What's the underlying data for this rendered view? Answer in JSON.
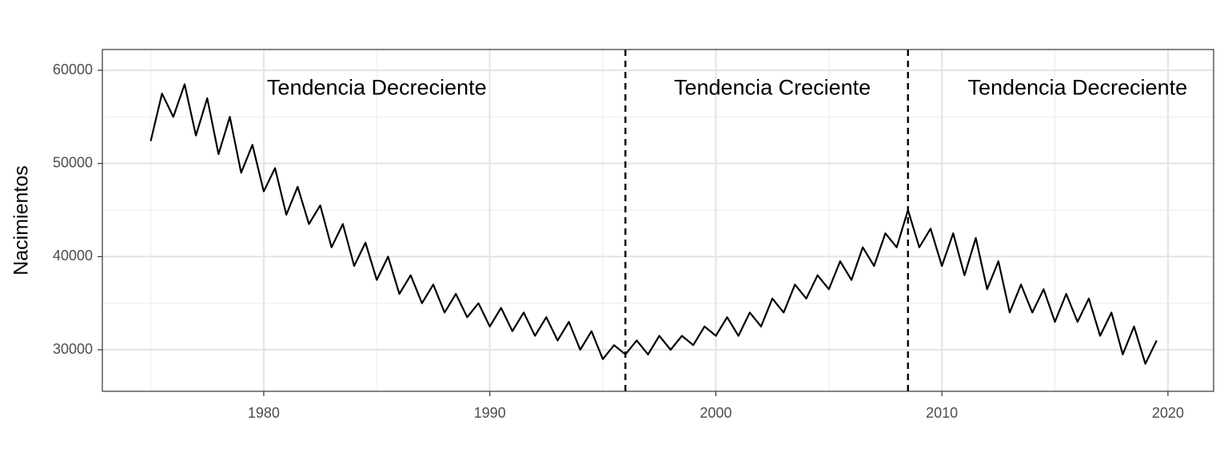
{
  "chart_data": {
    "type": "line",
    "y_label": "Nacimientos",
    "x": [
      1975,
      1975.5,
      1976,
      1976.5,
      1977,
      1977.5,
      1978,
      1978.5,
      1979,
      1979.5,
      1980,
      1980.5,
      1981,
      1981.5,
      1982,
      1982.5,
      1983,
      1983.5,
      1984,
      1984.5,
      1985,
      1985.5,
      1986,
      1986.5,
      1987,
      1987.5,
      1988,
      1988.5,
      1989,
      1989.5,
      1990,
      1990.5,
      1991,
      1991.5,
      1992,
      1992.5,
      1993,
      1993.5,
      1994,
      1994.5,
      1995,
      1995.5,
      1996,
      1996.5,
      1997,
      1997.5,
      1998,
      1998.5,
      1999,
      1999.5,
      2000,
      2000.5,
      2001,
      2001.5,
      2002,
      2002.5,
      2003,
      2003.5,
      2004,
      2004.5,
      2005,
      2005.5,
      2006,
      2006.5,
      2007,
      2007.5,
      2008,
      2008.5,
      2009,
      2009.5,
      2010,
      2010.5,
      2011,
      2011.5,
      2012,
      2012.5,
      2013,
      2013.5,
      2014,
      2014.5,
      2015,
      2015.5,
      2016,
      2016.5,
      2017,
      2017.5,
      2018,
      2018.5,
      2019,
      2019.5
    ],
    "series": [
      {
        "color": "#000000",
        "values": [
          52400,
          57500,
          55000,
          58500,
          53000,
          57000,
          51000,
          55000,
          49000,
          52000,
          47000,
          49500,
          44500,
          47500,
          43500,
          45500,
          41000,
          43500,
          39000,
          41500,
          37500,
          40000,
          36000,
          38000,
          35000,
          37000,
          34000,
          36000,
          33500,
          35000,
          32500,
          34500,
          32000,
          34000,
          31500,
          33500,
          31000,
          33000,
          30000,
          32000,
          29000,
          30500,
          29500,
          31000,
          29500,
          31500,
          30000,
          31500,
          30500,
          32500,
          31500,
          33500,
          31500,
          34000,
          32500,
          35500,
          34000,
          37000,
          35500,
          38000,
          36500,
          39500,
          37500,
          41000,
          39000,
          42500,
          41000,
          45000,
          41000,
          43000,
          39000,
          42500,
          38000,
          42000,
          36500,
          39500,
          34000,
          37000,
          34000,
          36500,
          33000,
          36000,
          33000,
          35500,
          31500,
          34000,
          29500,
          32500,
          28500,
          31000
        ]
      }
    ],
    "xlim": [
      1972.86,
      2022.02
    ],
    "ylim": [
      25543,
      62229
    ],
    "xticks": [
      1980,
      1990,
      2000,
      2010,
      2020
    ],
    "yticks": [
      30000,
      40000,
      50000,
      60000
    ],
    "minor_xticks": [
      1975,
      1985,
      1995,
      2005,
      2015
    ],
    "minor_yticks": [
      35000,
      45000,
      55000
    ],
    "grid": true,
    "vlines": [
      1996,
      2008.5
    ],
    "annotations": [
      {
        "x": 1985,
        "y": 58000,
        "text": "Tendencia Decreciente"
      },
      {
        "x": 2002.5,
        "y": 58000,
        "text": "Tendencia Creciente"
      },
      {
        "x": 2016,
        "y": 58000,
        "text": "Tendencia Decreciente"
      }
    ]
  }
}
